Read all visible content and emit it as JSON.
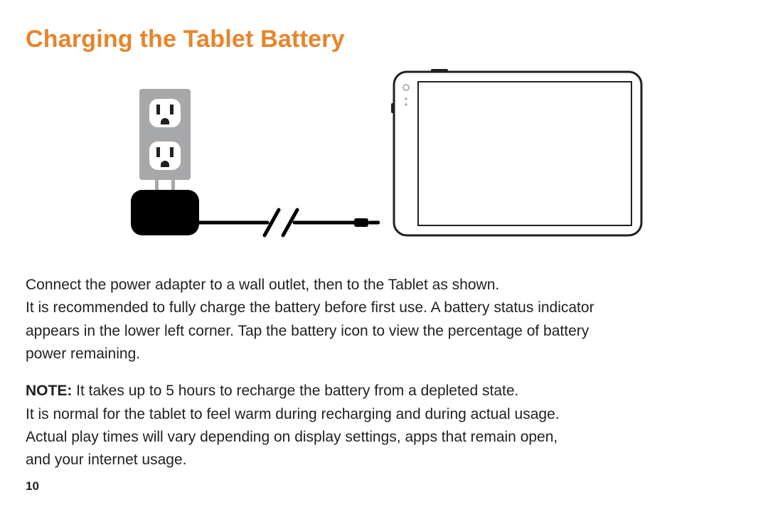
{
  "title": {
    "text": "Charging the Tablet Battery",
    "color": "#e8842a"
  },
  "paragraph1_line1": "Connect the power adapter to a wall outlet, then to the Tablet as shown.",
  "paragraph1_line2": "It is recommended to fully charge the battery before first use. A battery status indicator",
  "paragraph1_line3": "appears in the lower left corner. Tap the battery icon to view the percentage of battery",
  "paragraph1_line4": "power remaining.",
  "note_label": "NOTE:",
  "note_line1_rest": " It takes up to 5 hours to recharge the battery from a depleted state.",
  "paragraph2_line2": "It is normal for the tablet to feel warm during recharging and during actual usage.",
  "paragraph2_line3": "Actual play times will vary depending on display settings, apps that remain open,",
  "paragraph2_line4": "and your internet usage.",
  "page_number": "10",
  "illustration": {
    "colors": {
      "outlet_plate": "#a7a8aa",
      "outlet_socket_fill": "#ffffff",
      "outlet_slot": "#231f20",
      "adapter_body": "#000000",
      "cable": "#000000",
      "prongs": "#a7a8aa",
      "tablet_outer": "#231f20",
      "tablet_body": "#ffffff",
      "tablet_screen_border": "#231f20",
      "tablet_screen_fill": "#ffffff",
      "tablet_dot": "#9c9d9f"
    },
    "stroke_widths": {
      "cable": 5,
      "slash": 5,
      "tablet_outer": 3,
      "tablet_screen": 2
    }
  }
}
